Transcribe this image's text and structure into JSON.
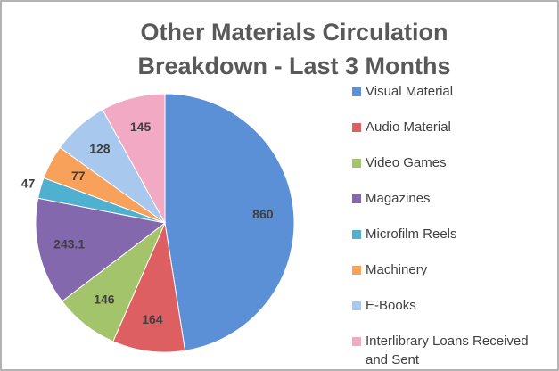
{
  "chart_data": {
    "type": "pie",
    "title": [
      "Other Materials Circulation",
      "Breakdown - Last 3 Months"
    ],
    "categories": [
      "Visual Material",
      "Audio Material",
      "Video Games",
      "Magazines",
      "Microfilm Reels",
      "Machinery",
      "E-Books",
      "Interlibrary Loans Received and Sent"
    ],
    "values": [
      860,
      164,
      146,
      243.1,
      47,
      77,
      128,
      145
    ],
    "colors": [
      "#5b8fd6",
      "#dd5f62",
      "#a3c46a",
      "#8468ad",
      "#4fb0cf",
      "#f7a15a",
      "#a9c8ee",
      "#f2a9c4"
    ],
    "legend": "right"
  }
}
